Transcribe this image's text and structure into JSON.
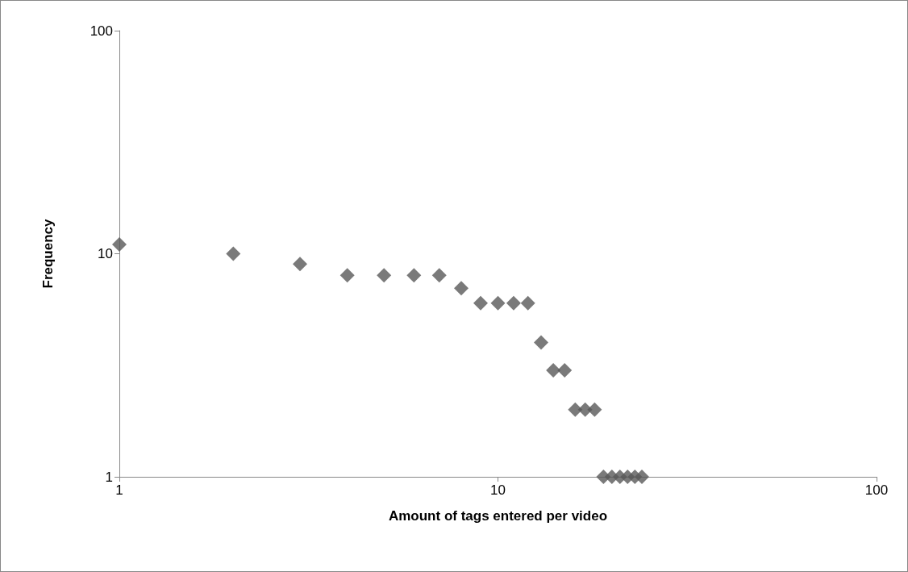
{
  "chart_data": {
    "type": "scatter",
    "xlabel": "Amount of tags entered per video",
    "ylabel": "Frequency",
    "log": "xy",
    "marker": "diamond",
    "grid": false,
    "xlim": [
      1,
      100
    ],
    "xticks": [
      1,
      10,
      100
    ],
    "ylim": [
      1,
      100
    ],
    "yticks": [
      1,
      10,
      100
    ],
    "x": [
      1,
      2,
      3,
      4,
      5,
      6,
      7,
      8,
      9,
      10,
      11,
      12,
      13,
      14,
      15,
      16,
      17,
      18,
      19,
      20,
      21,
      22,
      23,
      24
    ],
    "series": [
      {
        "color": "#595959",
        "values": [
          11,
          10,
          9,
          8,
          8,
          8,
          8,
          7,
          6,
          6,
          6,
          6,
          4,
          3,
          3,
          2,
          2,
          2,
          1,
          1,
          1,
          1,
          1,
          1
        ]
      }
    ]
  }
}
